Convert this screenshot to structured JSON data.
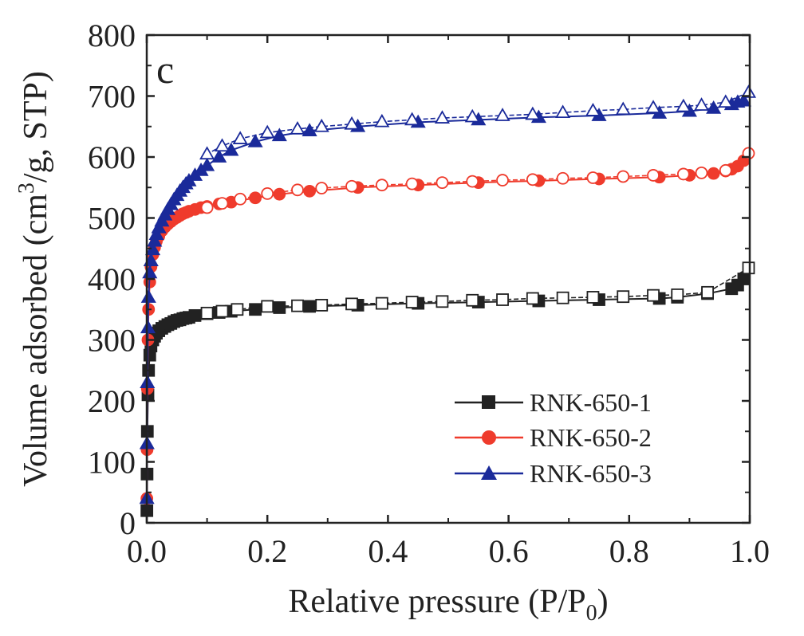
{
  "chart_data": {
    "type": "scatter",
    "panel_label": "c",
    "title": "",
    "xlabel": "Relative pressure (P/P",
    "xlabel_subscript": "0",
    "xlabel_suffix": ")",
    "ylabel": "Volume adsorbed (cm",
    "ylabel_superscript": "3",
    "ylabel_suffix": "/g, STP)",
    "xlim": [
      0.0,
      1.0
    ],
    "ylim": [
      0,
      800
    ],
    "xticks": [
      "0.0",
      "0.2",
      "0.4",
      "0.6",
      "0.8",
      "1.0"
    ],
    "yticks": [
      "0",
      "100",
      "200",
      "300",
      "400",
      "500",
      "600",
      "700",
      "800"
    ],
    "grid": false,
    "legend_position": "bottom-right",
    "series": [
      {
        "name": "RNK-650-1",
        "color": "#222222",
        "marker": "square",
        "adsorption": {
          "x": [
            0.0002,
            0.0005,
            0.001,
            0.002,
            0.003,
            0.005,
            0.007,
            0.01,
            0.013,
            0.016,
            0.02,
            0.025,
            0.03,
            0.035,
            0.04,
            0.045,
            0.05,
            0.055,
            0.06,
            0.065,
            0.07,
            0.08,
            0.1,
            0.12,
            0.14,
            0.18,
            0.22,
            0.27,
            0.35,
            0.45,
            0.55,
            0.65,
            0.75,
            0.85,
            0.88,
            0.93,
            0.97,
            0.98,
            0.99
          ],
          "y": [
            20,
            80,
            150,
            210,
            250,
            275,
            290,
            300,
            306,
            311,
            315,
            319,
            322,
            325,
            327,
            330,
            332,
            333,
            335,
            336,
            337,
            340,
            343,
            345,
            347,
            350,
            353,
            355,
            357,
            360,
            362,
            364,
            366,
            368,
            370,
            376,
            384,
            390,
            400
          ]
        },
        "desorption": {
          "x": [
            0.998,
            0.93,
            0.88,
            0.84,
            0.79,
            0.74,
            0.69,
            0.64,
            0.59,
            0.54,
            0.49,
            0.44,
            0.39,
            0.34,
            0.29,
            0.25,
            0.2,
            0.15,
            0.125,
            0.1
          ],
          "y": [
            418,
            378,
            374,
            373,
            371,
            370,
            369,
            368,
            366,
            365,
            363,
            362,
            360,
            359,
            357,
            356,
            355,
            350,
            347,
            344
          ]
        }
      },
      {
        "name": "RNK-650-2",
        "color": "#ef3b2c",
        "marker": "circle",
        "adsorption": {
          "x": [
            0.0002,
            0.0005,
            0.001,
            0.002,
            0.003,
            0.005,
            0.007,
            0.01,
            0.013,
            0.016,
            0.02,
            0.025,
            0.03,
            0.035,
            0.04,
            0.045,
            0.05,
            0.055,
            0.06,
            0.065,
            0.07,
            0.08,
            0.09,
            0.1,
            0.12,
            0.14,
            0.18,
            0.22,
            0.27,
            0.35,
            0.45,
            0.55,
            0.65,
            0.75,
            0.85,
            0.9,
            0.94,
            0.96,
            0.97,
            0.98,
            0.99
          ],
          "y": [
            40,
            120,
            220,
            300,
            350,
            395,
            420,
            440,
            452,
            462,
            470,
            479,
            485,
            490,
            494,
            498,
            501,
            504,
            507,
            509,
            511,
            514,
            517,
            519,
            523,
            526,
            533,
            539,
            544,
            550,
            554,
            558,
            561,
            564,
            567,
            570,
            573,
            577,
            580,
            585,
            594
          ]
        },
        "desorption": {
          "x": [
            0.998,
            0.96,
            0.92,
            0.89,
            0.84,
            0.79,
            0.74,
            0.69,
            0.64,
            0.59,
            0.54,
            0.49,
            0.44,
            0.39,
            0.34,
            0.29,
            0.25,
            0.2,
            0.155,
            0.125,
            0.1
          ],
          "y": [
            606,
            578,
            574,
            572,
            570,
            568,
            566,
            565,
            563,
            562,
            560,
            558,
            556,
            554,
            552,
            549,
            546,
            540,
            531,
            524,
            517
          ]
        }
      },
      {
        "name": "RNK-650-3",
        "color": "#1a2a9a",
        "marker": "triangle",
        "adsorption": {
          "x": [
            0.0002,
            0.0005,
            0.001,
            0.002,
            0.003,
            0.005,
            0.007,
            0.01,
            0.013,
            0.016,
            0.02,
            0.025,
            0.03,
            0.035,
            0.04,
            0.045,
            0.05,
            0.055,
            0.06,
            0.065,
            0.07,
            0.08,
            0.09,
            0.1,
            0.12,
            0.14,
            0.18,
            0.22,
            0.27,
            0.35,
            0.45,
            0.55,
            0.65,
            0.75,
            0.85,
            0.9,
            0.94,
            0.97,
            0.98,
            0.99
          ],
          "y": [
            40,
            130,
            230,
            320,
            370,
            410,
            430,
            448,
            462,
            473,
            484,
            495,
            505,
            514,
            522,
            530,
            537,
            544,
            550,
            556,
            561,
            570,
            578,
            586,
            600,
            611,
            625,
            635,
            643,
            650,
            657,
            661,
            665,
            668,
            672,
            675,
            680,
            686,
            690,
            692
          ]
        },
        "desorption": {
          "x": [
            0.998,
            0.96,
            0.92,
            0.89,
            0.84,
            0.79,
            0.74,
            0.69,
            0.64,
            0.59,
            0.54,
            0.49,
            0.44,
            0.39,
            0.34,
            0.29,
            0.25,
            0.2,
            0.155,
            0.125,
            0.1
          ],
          "y": [
            706,
            690,
            685,
            683,
            681,
            678,
            676,
            673,
            670,
            668,
            666,
            664,
            661,
            658,
            654,
            650,
            646,
            640,
            630,
            618,
            605
          ]
        }
      }
    ]
  }
}
